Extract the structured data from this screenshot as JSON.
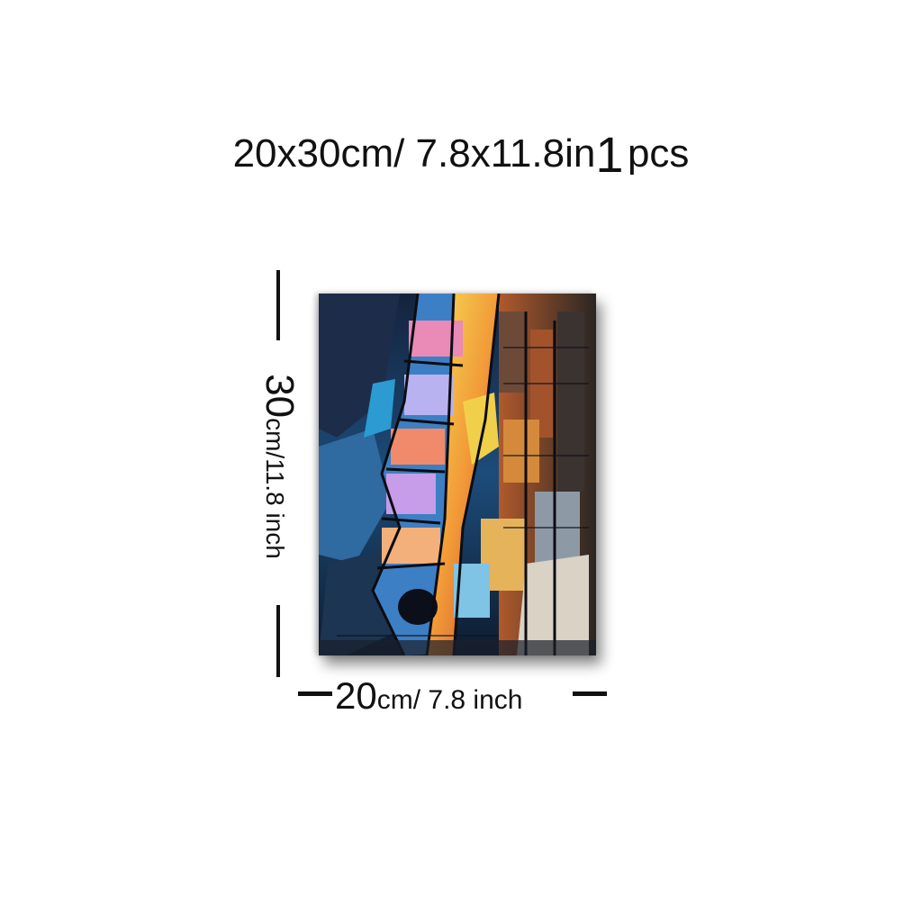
{
  "headline": {
    "size_big": "20x30cm/ 7.8x11.8in",
    "quantity": "1",
    "unit": "pcs"
  },
  "height_label": {
    "number": "30",
    "rest": "cm/11.8 inch"
  },
  "width_label": {
    "number": "20",
    "rest": "cm/ 7.8 inch"
  },
  "colors": {
    "text": "#111111",
    "background": "#ffffff"
  }
}
